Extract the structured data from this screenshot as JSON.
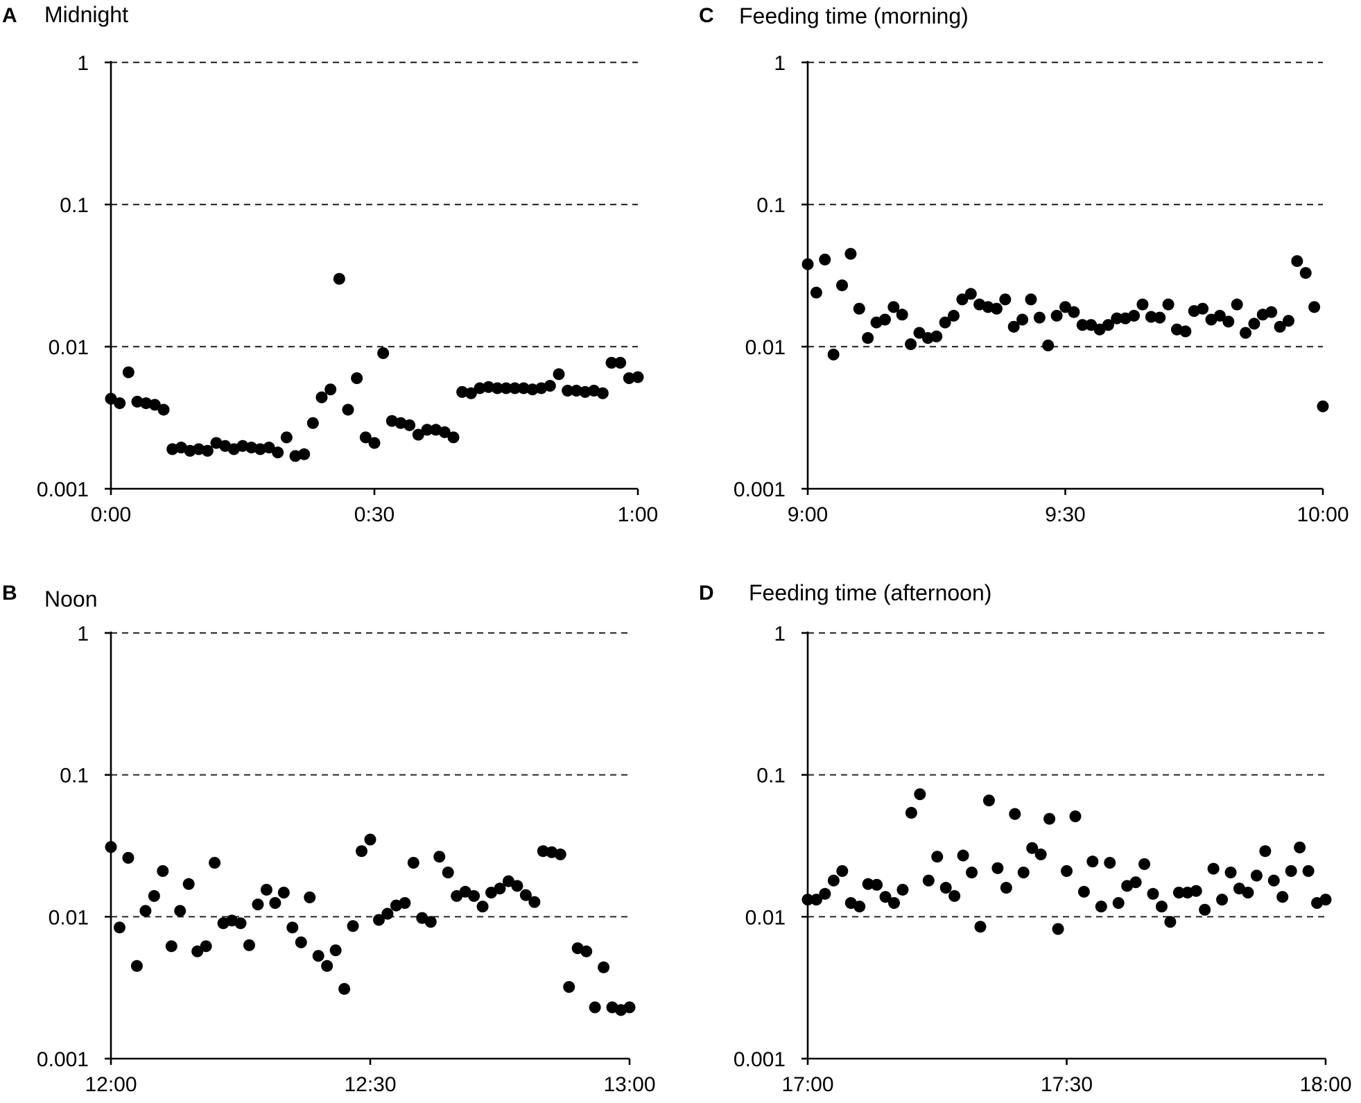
{
  "figure": {
    "y_scale": "log",
    "panels_order": [
      "A",
      "B",
      "C",
      "D"
    ]
  },
  "chart_data": [
    {
      "type": "scatter",
      "panel_letter": "A",
      "title": "Midnight",
      "x_tick_labels": [
        "0:00",
        "0:30",
        "1:00"
      ],
      "x_range_minutes": [
        0,
        60
      ],
      "y_tick_labels": [
        "1",
        "0.1",
        "0.01",
        "0.001"
      ],
      "y_ticks": [
        1,
        0.1,
        0.01,
        0.001
      ],
      "ylim": [
        0.001,
        1
      ],
      "y_gridlines": "dashed at 1, 0.1, 0.01",
      "color": "#000000",
      "x": [
        0,
        1,
        2,
        3,
        4,
        5,
        6,
        7,
        8,
        9,
        10,
        11,
        12,
        13,
        14,
        15,
        16,
        17,
        18,
        19,
        20,
        21,
        22,
        23,
        24,
        25,
        26,
        27,
        28,
        29,
        30,
        31,
        32,
        33,
        34,
        35,
        36,
        37,
        38,
        39,
        40,
        41,
        42,
        43,
        44,
        45,
        46,
        47,
        48,
        49,
        50,
        51,
        52,
        53,
        54,
        55,
        56,
        57,
        58,
        59,
        60
      ],
      "values": [
        0.0043,
        0.004,
        0.0066,
        0.0041,
        0.004,
        0.0039,
        0.0036,
        0.0019,
        0.00195,
        0.00185,
        0.0019,
        0.00185,
        0.0021,
        0.002,
        0.0019,
        0.002,
        0.00195,
        0.0019,
        0.00195,
        0.0018,
        0.0023,
        0.0017,
        0.00175,
        0.0029,
        0.0044,
        0.005,
        0.03,
        0.0036,
        0.006,
        0.0023,
        0.0021,
        0.009,
        0.003,
        0.0029,
        0.0028,
        0.0024,
        0.0026,
        0.0026,
        0.0025,
        0.0023,
        0.0048,
        0.0047,
        0.0051,
        0.0052,
        0.0051,
        0.0051,
        0.0051,
        0.0051,
        0.005,
        0.0051,
        0.0053,
        0.0064,
        0.0049,
        0.0049,
        0.0048,
        0.0049,
        0.0047,
        0.0077,
        0.0077,
        0.006,
        0.0061
      ]
    },
    {
      "type": "scatter",
      "panel_letter": "B",
      "title": "Noon",
      "x_tick_labels": [
        "12:00",
        "12:30",
        "13:00"
      ],
      "x_range_minutes": [
        0,
        60
      ],
      "y_tick_labels": [
        "1",
        "0.1",
        "0.01",
        "0.001"
      ],
      "y_ticks": [
        1,
        0.1,
        0.01,
        0.001
      ],
      "ylim": [
        0.001,
        1
      ],
      "y_gridlines": "dashed at 1, 0.1, 0.01",
      "color": "#000000",
      "x": [
        0,
        1,
        2,
        3,
        4,
        5,
        6,
        7,
        8,
        9,
        10,
        11,
        12,
        13,
        14,
        15,
        16,
        17,
        18,
        19,
        20,
        21,
        22,
        23,
        24,
        25,
        26,
        27,
        28,
        29,
        30,
        31,
        32,
        33,
        34,
        35,
        36,
        37,
        38,
        39,
        40,
        41,
        42,
        43,
        44,
        45,
        46,
        47,
        48,
        49,
        50,
        51,
        52,
        53,
        54,
        55,
        56,
        57,
        58,
        59,
        60
      ],
      "values": [
        0.031,
        0.0084,
        0.026,
        0.0045,
        0.011,
        0.014,
        0.021,
        0.0062,
        0.011,
        0.017,
        0.0057,
        0.0062,
        0.024,
        0.009,
        0.0094,
        0.009,
        0.0063,
        0.0122,
        0.0155,
        0.0125,
        0.0148,
        0.0084,
        0.0066,
        0.0137,
        0.0053,
        0.0045,
        0.0058,
        0.0031,
        0.0086,
        0.029,
        0.035,
        0.0095,
        0.0105,
        0.012,
        0.0125,
        0.024,
        0.0098,
        0.0092,
        0.0265,
        0.0205,
        0.014,
        0.015,
        0.014,
        0.0118,
        0.0148,
        0.0158,
        0.0178,
        0.0165,
        0.0142,
        0.0127,
        0.029,
        0.0285,
        0.0275,
        0.0032,
        0.006,
        0.0057,
        0.0023,
        0.0044,
        0.0023,
        0.0022,
        0.0023
      ]
    },
    {
      "type": "scatter",
      "panel_letter": "C",
      "title": "Feeding time (morning)",
      "x_tick_labels": [
        "9:00",
        "9:30",
        "10:00"
      ],
      "x_range_minutes": [
        0,
        60
      ],
      "y_tick_labels": [
        "1",
        "0.1",
        "0.01",
        "0.001"
      ],
      "y_ticks": [
        1,
        0.1,
        0.01,
        0.001
      ],
      "ylim": [
        0.001,
        1
      ],
      "y_gridlines": "dashed at 1, 0.1, 0.01",
      "color": "#000000",
      "x": [
        0,
        1,
        2,
        3,
        4,
        5,
        6,
        7,
        8,
        9,
        10,
        11,
        12,
        13,
        14,
        15,
        16,
        17,
        18,
        19,
        20,
        21,
        22,
        23,
        24,
        25,
        26,
        27,
        28,
        29,
        30,
        31,
        32,
        33,
        34,
        35,
        36,
        37,
        38,
        39,
        40,
        41,
        42,
        43,
        44,
        45,
        46,
        47,
        48,
        49,
        50,
        51,
        52,
        53,
        54,
        55,
        56,
        57,
        58,
        59,
        60
      ],
      "values": [
        0.038,
        0.024,
        0.041,
        0.0088,
        0.027,
        0.045,
        0.0185,
        0.0115,
        0.0148,
        0.0155,
        0.019,
        0.0168,
        0.0104,
        0.0125,
        0.0115,
        0.0118,
        0.0148,
        0.0165,
        0.0215,
        0.0235,
        0.0198,
        0.019,
        0.0185,
        0.0215,
        0.0138,
        0.0155,
        0.0215,
        0.016,
        0.0102,
        0.0165,
        0.019,
        0.0175,
        0.0142,
        0.0142,
        0.0132,
        0.0142,
        0.0158,
        0.0158,
        0.0165,
        0.0198,
        0.0162,
        0.016,
        0.0198,
        0.0132,
        0.0128,
        0.0178,
        0.0185,
        0.0155,
        0.0165,
        0.015,
        0.0198,
        0.0125,
        0.0145,
        0.0168,
        0.0175,
        0.0138,
        0.0152,
        0.04,
        0.033,
        0.019,
        0.0038
      ]
    },
    {
      "type": "scatter",
      "panel_letter": "D",
      "title": "Feeding time (afternoon)",
      "x_tick_labels": [
        "17:00",
        "17:30",
        "18:00"
      ],
      "x_range_minutes": [
        0,
        60
      ],
      "y_tick_labels": [
        "1",
        "0.1",
        "0.01",
        "0.001"
      ],
      "y_ticks": [
        1,
        0.1,
        0.01,
        0.001
      ],
      "ylim": [
        0.001,
        1
      ],
      "y_gridlines": "dashed at 1, 0.1, 0.01",
      "color": "#000000",
      "x": [
        0,
        1,
        2,
        3,
        4,
        5,
        6,
        7,
        8,
        9,
        10,
        11,
        12,
        13,
        14,
        15,
        16,
        17,
        18,
        19,
        20,
        21,
        22,
        23,
        24,
        25,
        26,
        27,
        28,
        29,
        30,
        31,
        32,
        33,
        34,
        35,
        36,
        37,
        38,
        39,
        40,
        41,
        42,
        43,
        44,
        45,
        46,
        47,
        48,
        49,
        50,
        51,
        52,
        53,
        54,
        55,
        56,
        57,
        58,
        59,
        60
      ],
      "values": [
        0.0132,
        0.0132,
        0.0145,
        0.018,
        0.021,
        0.0125,
        0.0118,
        0.017,
        0.0168,
        0.0138,
        0.0125,
        0.0155,
        0.054,
        0.073,
        0.018,
        0.0265,
        0.016,
        0.014,
        0.027,
        0.0205,
        0.0085,
        0.066,
        0.022,
        0.016,
        0.053,
        0.0205,
        0.0305,
        0.0275,
        0.049,
        0.0082,
        0.021,
        0.051,
        0.015,
        0.0245,
        0.0118,
        0.024,
        0.0125,
        0.0165,
        0.0175,
        0.0235,
        0.0145,
        0.0118,
        0.0092,
        0.0148,
        0.0148,
        0.0152,
        0.0112,
        0.0218,
        0.0132,
        0.0205,
        0.0158,
        0.0148,
        0.0195,
        0.029,
        0.018,
        0.0138,
        0.021,
        0.0308,
        0.021,
        0.0125,
        0.0132
      ]
    }
  ]
}
